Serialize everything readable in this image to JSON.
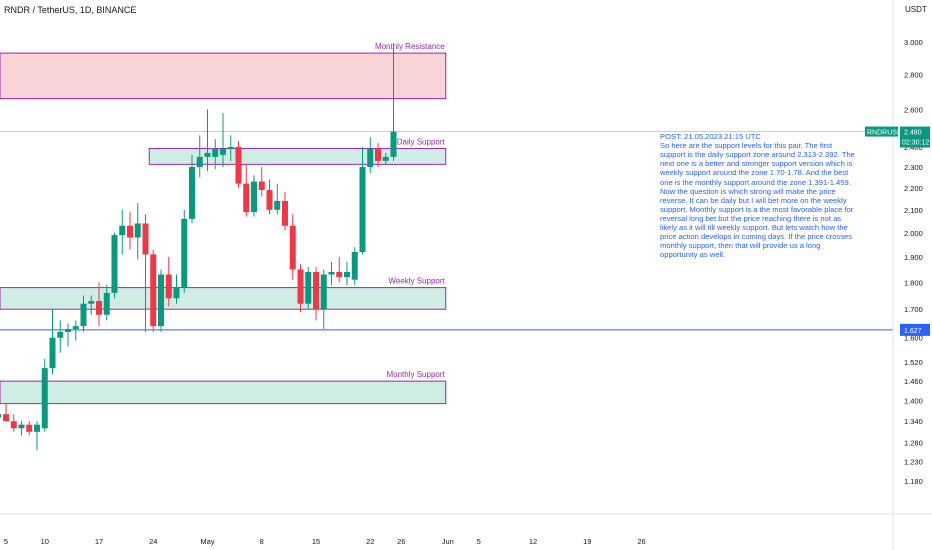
{
  "header": {
    "title": "RNDR / TetherUS, 1D, BINANCE",
    "currency": "USDT"
  },
  "note": {
    "text": "POST: 21.05.2023 21:15 UTC\nSo here are the support levels for this pair. The first support is the daily support zone around 2.313-2.392. The next one is a better and stronger support version which is weekly support around the zone 1.70-1.78. And the best one is the monthly support around the zone 1.391-1.459. Now the question is which strong will make the price reverse. It can be daily but I will bet more on the weekly support. Monthly support is a the most favorable place for reversal long bet but the price reaching there is not as likely as it will till weekly support. But lets watch how the price action develops in coming days. If the price crosses monthly support, then that will provide us a long opportunity as well."
  },
  "price_tag": {
    "symbol": "RNDRUSDT",
    "price": "2.480",
    "countdown": "02:30:12"
  },
  "level_tag": "1.627",
  "colors": {
    "up": "#089981",
    "down": "#f23645",
    "zone_border": "#9c27b0",
    "resistance_fill": "#f9d4d6",
    "support_fill": "#cfece5",
    "level_line": "#2962ff",
    "last_price_line": "#089981"
  },
  "chart_data": {
    "type": "candlestick",
    "symbol": "RNDR / TetherUS",
    "timeframe": "1D",
    "exchange": "BINANCE",
    "y_axis": {
      "scale": "log",
      "ticks": [
        "3.000",
        "2.800",
        "2.600",
        "2.400",
        "2.300",
        "2.200",
        "2.100",
        "2.000",
        "1.900",
        "1.800",
        "1.700",
        "1.600",
        "1.520",
        "1.460",
        "1.400",
        "1.340",
        "1.280",
        "1.230",
        "1.180"
      ]
    },
    "x_axis": {
      "ticks": [
        {
          "label": "5",
          "date": "2023-04-05"
        },
        {
          "label": "10",
          "date": "2023-04-10"
        },
        {
          "label": "17",
          "date": "2023-04-17"
        },
        {
          "label": "24",
          "date": "2023-04-24"
        },
        {
          "label": "May",
          "date": "2023-05-01"
        },
        {
          "label": "8",
          "date": "2023-05-08"
        },
        {
          "label": "15",
          "date": "2023-05-15"
        },
        {
          "label": "22",
          "date": "2023-05-22"
        },
        {
          "label": "26",
          "date": "2023-05-26"
        },
        {
          "label": "Jun",
          "date": "2023-06-01"
        },
        {
          "label": "5",
          "date": "2023-06-05"
        },
        {
          "label": "12",
          "date": "2023-06-12"
        },
        {
          "label": "19",
          "date": "2023-06-19"
        },
        {
          "label": "26",
          "date": "2023-06-26"
        }
      ]
    },
    "zones": [
      {
        "label": "Monthly Resistance",
        "high": 2.93,
        "low": 2.66,
        "kind": "resistance",
        "start": "2023-04-04",
        "end": "2023-06-01"
      },
      {
        "label": "Daily Support",
        "high": 2.392,
        "low": 2.313,
        "kind": "support",
        "start": "2023-04-24",
        "end": "2023-06-01"
      },
      {
        "label": "Weekly Support",
        "high": 1.78,
        "low": 1.7,
        "kind": "support",
        "start": "2023-04-04",
        "end": "2023-06-01"
      },
      {
        "label": "Monthly Support",
        "high": 1.459,
        "low": 1.391,
        "kind": "support",
        "start": "2023-04-04",
        "end": "2023-06-01"
      }
    ],
    "level_line": {
      "value": 1.627
    },
    "last_price": 2.48,
    "candles": [
      {
        "date": "2023-04-04",
        "o": 1.35,
        "h": 1.38,
        "l": 1.33,
        "c": 1.36
      },
      {
        "date": "2023-04-05",
        "o": 1.36,
        "h": 1.39,
        "l": 1.34,
        "c": 1.34
      },
      {
        "date": "2023-04-06",
        "o": 1.34,
        "h": 1.36,
        "l": 1.31,
        "c": 1.32
      },
      {
        "date": "2023-04-07",
        "o": 1.32,
        "h": 1.34,
        "l": 1.3,
        "c": 1.33
      },
      {
        "date": "2023-04-08",
        "o": 1.33,
        "h": 1.34,
        "l": 1.3,
        "c": 1.31
      },
      {
        "date": "2023-04-09",
        "o": 1.31,
        "h": 1.34,
        "l": 1.26,
        "c": 1.33
      },
      {
        "date": "2023-04-10",
        "o": 1.32,
        "h": 1.53,
        "l": 1.31,
        "c": 1.5
      },
      {
        "date": "2023-04-11",
        "o": 1.5,
        "h": 1.7,
        "l": 1.48,
        "c": 1.6
      },
      {
        "date": "2023-04-12",
        "o": 1.6,
        "h": 1.66,
        "l": 1.55,
        "c": 1.62
      },
      {
        "date": "2023-04-13",
        "o": 1.62,
        "h": 1.65,
        "l": 1.57,
        "c": 1.63
      },
      {
        "date": "2023-04-14",
        "o": 1.63,
        "h": 1.66,
        "l": 1.59,
        "c": 1.64
      },
      {
        "date": "2023-04-15",
        "o": 1.64,
        "h": 1.75,
        "l": 1.62,
        "c": 1.72
      },
      {
        "date": "2023-04-16",
        "o": 1.72,
        "h": 1.75,
        "l": 1.68,
        "c": 1.73
      },
      {
        "date": "2023-04-17",
        "o": 1.73,
        "h": 1.8,
        "l": 1.64,
        "c": 1.68
      },
      {
        "date": "2023-04-18",
        "o": 1.68,
        "h": 1.79,
        "l": 1.66,
        "c": 1.76
      },
      {
        "date": "2023-04-19",
        "o": 1.76,
        "h": 2.0,
        "l": 1.74,
        "c": 1.99
      },
      {
        "date": "2023-04-20",
        "o": 1.99,
        "h": 2.1,
        "l": 1.91,
        "c": 2.03
      },
      {
        "date": "2023-04-21",
        "o": 2.03,
        "h": 2.09,
        "l": 1.93,
        "c": 1.98
      },
      {
        "date": "2023-04-22",
        "o": 1.98,
        "h": 2.13,
        "l": 1.89,
        "c": 2.04
      },
      {
        "date": "2023-04-23",
        "o": 2.04,
        "h": 2.08,
        "l": 1.62,
        "c": 1.91
      },
      {
        "date": "2023-04-24",
        "o": 1.91,
        "h": 1.93,
        "l": 1.62,
        "c": 1.64
      },
      {
        "date": "2023-04-25",
        "o": 1.64,
        "h": 1.85,
        "l": 1.62,
        "c": 1.83
      },
      {
        "date": "2023-04-26",
        "o": 1.83,
        "h": 1.9,
        "l": 1.71,
        "c": 1.74
      },
      {
        "date": "2023-04-27",
        "o": 1.74,
        "h": 1.83,
        "l": 1.72,
        "c": 1.78
      },
      {
        "date": "2023-04-28",
        "o": 1.78,
        "h": 2.1,
        "l": 1.76,
        "c": 2.06
      },
      {
        "date": "2023-04-29",
        "o": 2.06,
        "h": 2.36,
        "l": 2.04,
        "c": 2.3
      },
      {
        "date": "2023-04-30",
        "o": 2.3,
        "h": 2.46,
        "l": 2.25,
        "c": 2.35
      },
      {
        "date": "2023-05-01",
        "o": 2.35,
        "h": 2.6,
        "l": 2.28,
        "c": 2.37
      },
      {
        "date": "2023-05-02",
        "o": 2.35,
        "h": 2.44,
        "l": 2.29,
        "c": 2.39
      },
      {
        "date": "2023-05-03",
        "o": 2.36,
        "h": 2.58,
        "l": 2.3,
        "c": 2.39
      },
      {
        "date": "2023-05-04",
        "o": 2.39,
        "h": 2.46,
        "l": 2.33,
        "c": 2.4
      },
      {
        "date": "2023-05-05",
        "o": 2.4,
        "h": 2.43,
        "l": 2.2,
        "c": 2.22
      },
      {
        "date": "2023-05-06",
        "o": 2.22,
        "h": 2.31,
        "l": 2.07,
        "c": 2.09
      },
      {
        "date": "2023-05-07",
        "o": 2.09,
        "h": 2.26,
        "l": 2.07,
        "c": 2.23
      },
      {
        "date": "2023-05-08",
        "o": 2.23,
        "h": 2.3,
        "l": 2.16,
        "c": 2.19
      },
      {
        "date": "2023-05-09",
        "o": 2.19,
        "h": 2.24,
        "l": 2.08,
        "c": 2.1
      },
      {
        "date": "2023-05-10",
        "o": 2.1,
        "h": 2.22,
        "l": 2.08,
        "c": 2.14
      },
      {
        "date": "2023-05-11",
        "o": 2.14,
        "h": 2.18,
        "l": 2.01,
        "c": 2.03
      },
      {
        "date": "2023-05-12",
        "o": 2.03,
        "h": 2.08,
        "l": 1.81,
        "c": 1.85
      },
      {
        "date": "2023-05-13",
        "o": 1.85,
        "h": 1.87,
        "l": 1.69,
        "c": 1.72
      },
      {
        "date": "2023-05-14",
        "o": 1.72,
        "h": 1.86,
        "l": 1.7,
        "c": 1.84
      },
      {
        "date": "2023-05-15",
        "o": 1.84,
        "h": 1.86,
        "l": 1.66,
        "c": 1.7
      },
      {
        "date": "2023-05-16",
        "o": 1.7,
        "h": 1.85,
        "l": 1.63,
        "c": 1.83
      },
      {
        "date": "2023-05-17",
        "o": 1.83,
        "h": 1.88,
        "l": 1.79,
        "c": 1.84
      },
      {
        "date": "2023-05-18",
        "o": 1.84,
        "h": 1.9,
        "l": 1.8,
        "c": 1.82
      },
      {
        "date": "2023-05-19",
        "o": 1.82,
        "h": 1.88,
        "l": 1.79,
        "c": 1.84
      },
      {
        "date": "2023-05-20",
        "o": 1.81,
        "h": 1.94,
        "l": 1.79,
        "c": 1.92
      },
      {
        "date": "2023-05-21",
        "o": 1.92,
        "h": 2.4,
        "l": 1.91,
        "c": 2.3
      },
      {
        "date": "2023-05-22",
        "o": 2.3,
        "h": 2.45,
        "l": 2.27,
        "c": 2.39
      },
      {
        "date": "2023-05-23",
        "o": 2.39,
        "h": 2.42,
        "l": 2.3,
        "c": 2.33
      },
      {
        "date": "2023-05-24",
        "o": 2.33,
        "h": 2.37,
        "l": 2.31,
        "c": 2.35
      },
      {
        "date": "2023-05-25",
        "o": 2.35,
        "h": 2.99,
        "l": 2.33,
        "c": 2.48
      }
    ]
  }
}
